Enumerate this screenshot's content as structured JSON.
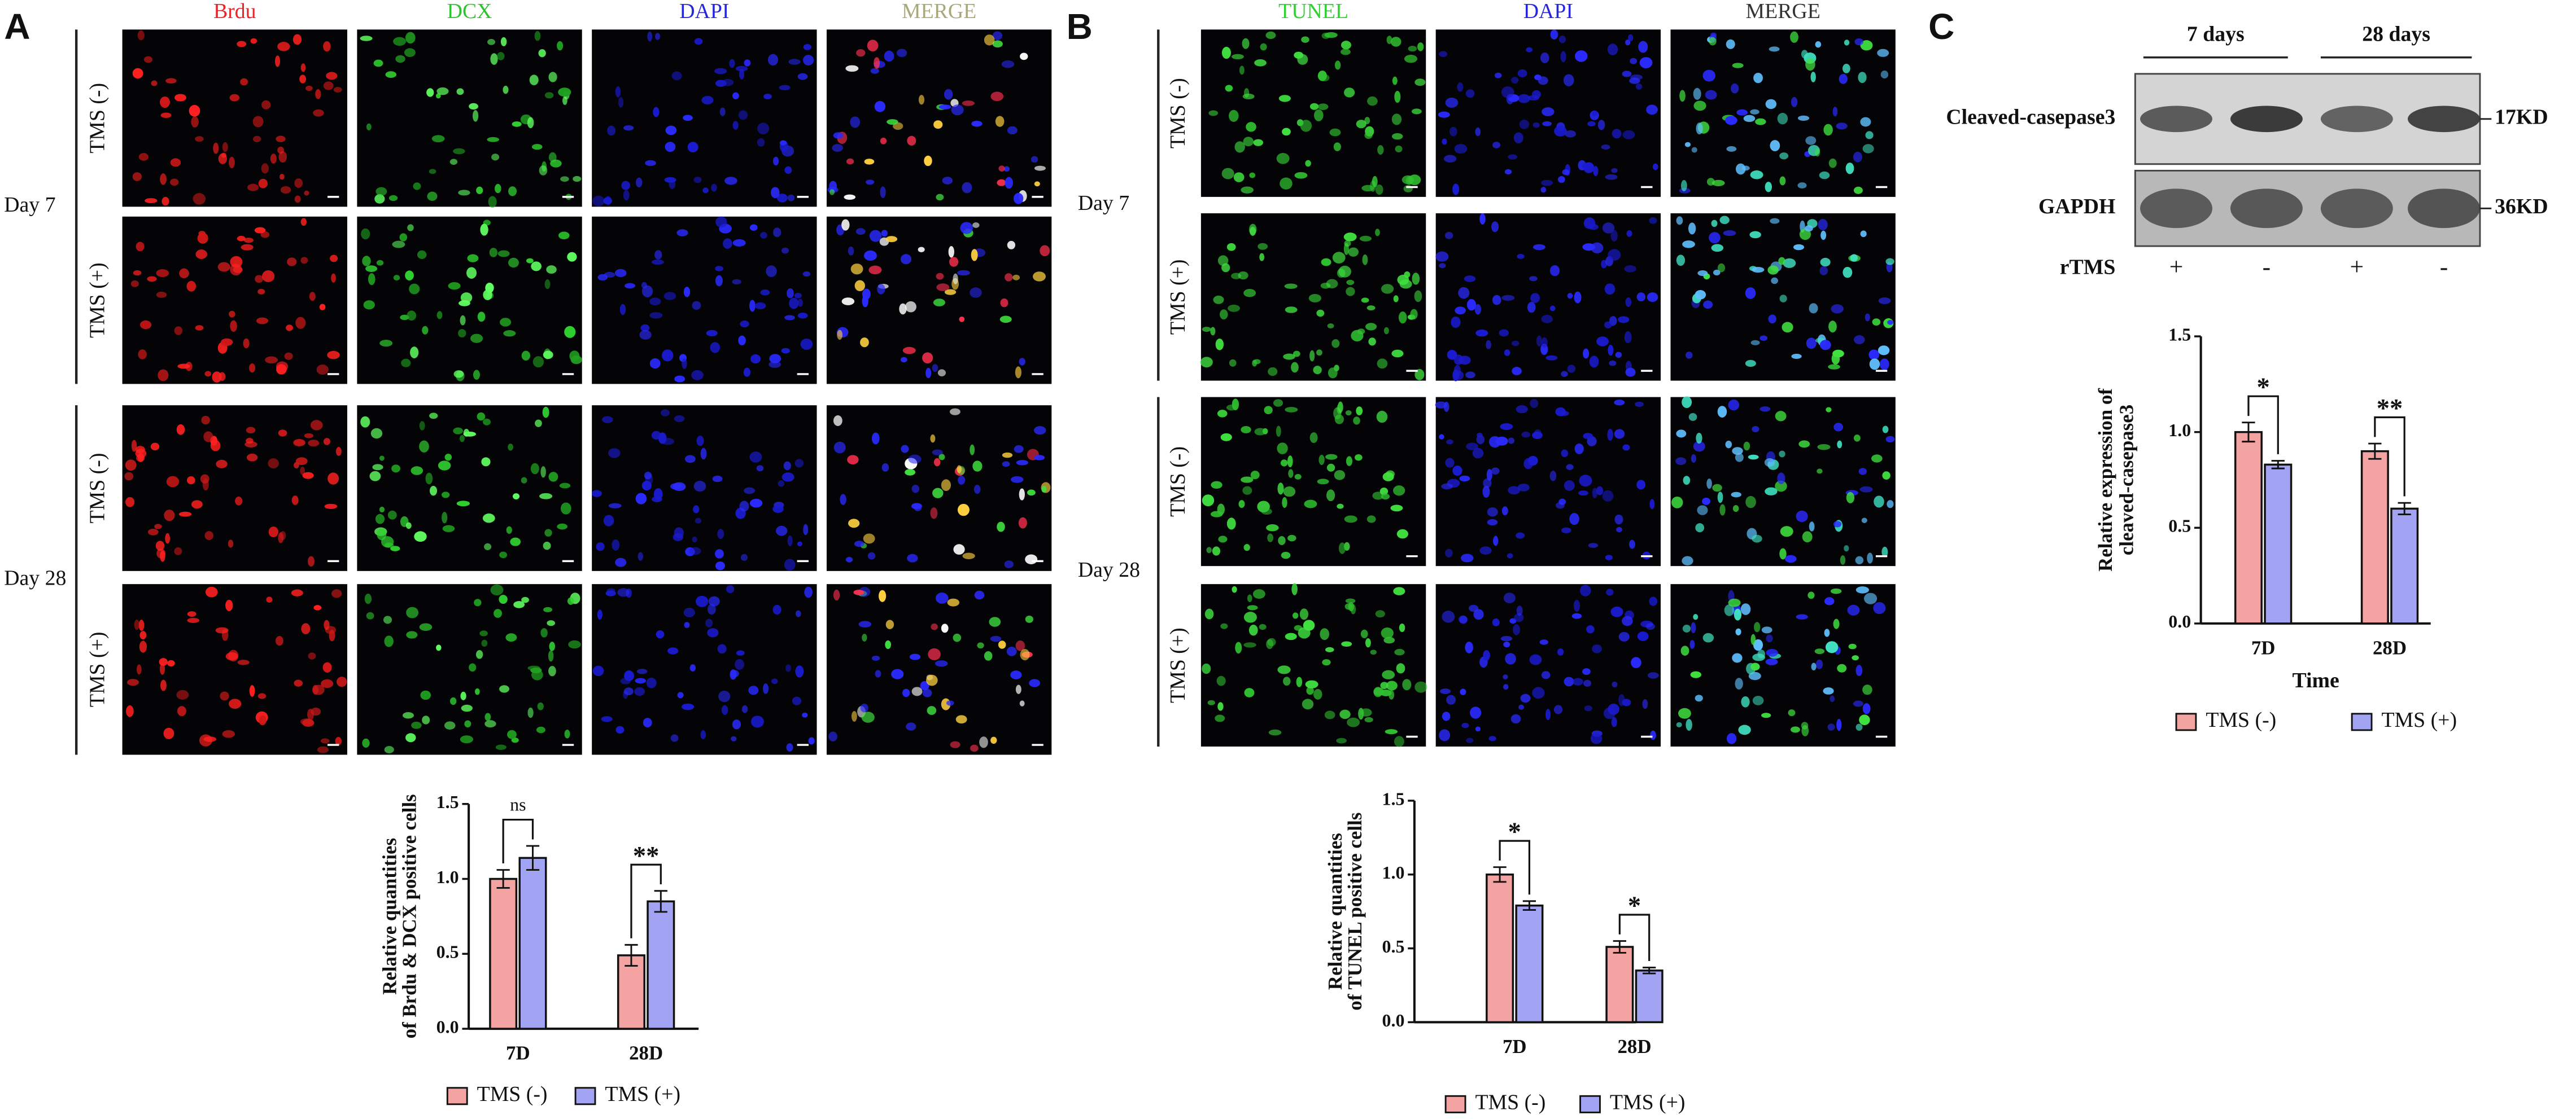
{
  "figure": {
    "panels": [
      {
        "label": "A",
        "columns": [
          "Brdu",
          "DCX",
          "DAPI",
          "MERGE"
        ],
        "colors": [
          "#e8252a",
          "#2fc22f",
          "#2626e0",
          "#a8a878"
        ],
        "rows": [
          "TMS (-)",
          "TMS (+)",
          "TMS (-)",
          "TMS (+)"
        ],
        "groups": [
          "Day 7",
          "Day 28"
        ]
      },
      {
        "label": "B",
        "columns": [
          "TUNEL",
          "DAPI",
          "MERGE"
        ],
        "colors": [
          "#2fd02f",
          "#2626e0",
          "#333333"
        ],
        "rows": [
          "TMS (-)",
          "TMS (+)",
          "TMS (-)",
          "TMS (+)"
        ],
        "groups": [
          "Day 7",
          "Day 28"
        ]
      },
      {
        "label": "C",
        "groups": [
          "7 days",
          "28 days"
        ],
        "blots": [
          {
            "label": "Cleaved-casepase3",
            "size": "17KD"
          },
          {
            "label": "GAPDH",
            "size": "36KD"
          }
        ],
        "treatment": {
          "label": "rTMS",
          "signs": [
            "+",
            "-",
            "+",
            "-"
          ]
        }
      }
    ]
  },
  "chart_data": [
    {
      "type": "bar",
      "ylabel": [
        "Relative quantities",
        "of Brdu & DCX positive cells"
      ],
      "categories": [
        "7D",
        "28D"
      ],
      "series": [
        {
          "name": "TMS (-)",
          "color": "#f4a3a3",
          "values": [
            1.0,
            0.49
          ],
          "errors": [
            0.06,
            0.07
          ]
        },
        {
          "name": "TMS (+)",
          "color": "#a3a3f4",
          "values": [
            1.14,
            0.85
          ],
          "errors": [
            0.08,
            0.07
          ]
        }
      ],
      "ylim": [
        0,
        1.5
      ],
      "yticks": [
        {
          "value": 0,
          "label": "0.0"
        },
        {
          "value": 0.5,
          "label": "0.5"
        },
        {
          "value": 1,
          "label": "1.0"
        },
        {
          "value": 1.5,
          "label": "1.5"
        }
      ],
      "annotations": [
        "ns",
        "**"
      ]
    },
    {
      "type": "bar",
      "ylabel": [
        "Relative quantities",
        "of TUNEL positive cells"
      ],
      "categories": [
        "7D",
        "28D"
      ],
      "series": [
        {
          "name": "TMS (-)",
          "color": "#f4a3a3",
          "values": [
            1.0,
            0.51
          ],
          "errors": [
            0.05,
            0.04
          ]
        },
        {
          "name": "TMS (+)",
          "color": "#a3a3f4",
          "values": [
            0.79,
            0.35
          ],
          "errors": [
            0.03,
            0.02
          ]
        }
      ],
      "ylim": [
        0,
        1.5
      ],
      "yticks": [
        {
          "value": 0,
          "label": "0.0"
        },
        {
          "value": 0.5,
          "label": "0.5"
        },
        {
          "value": 1,
          "label": "1.0"
        },
        {
          "value": 1.5,
          "label": "1.5"
        }
      ],
      "annotations": [
        "*",
        "*"
      ]
    },
    {
      "type": "bar",
      "ylabel": [
        "Relative expression of",
        "cleaved-casepase3"
      ],
      "xlabel": "Time",
      "categories": [
        "7D",
        "28D"
      ],
      "series": [
        {
          "name": "TMS (-)",
          "color": "#f4a3a3",
          "values": [
            1.0,
            0.9
          ],
          "errors": [
            0.05,
            0.04
          ]
        },
        {
          "name": "TMS (+)",
          "color": "#a3a3f4",
          "values": [
            0.83,
            0.6
          ],
          "errors": [
            0.02,
            0.03
          ]
        }
      ],
      "ylim": [
        0,
        1.5
      ],
      "yticks": [
        {
          "value": 0,
          "label": "0.0"
        },
        {
          "value": 0.5,
          "label": "0.5"
        },
        {
          "value": 1,
          "label": "1.0"
        },
        {
          "value": 1.5,
          "label": "1.5"
        }
      ],
      "annotations": [
        "*",
        "**"
      ]
    }
  ]
}
